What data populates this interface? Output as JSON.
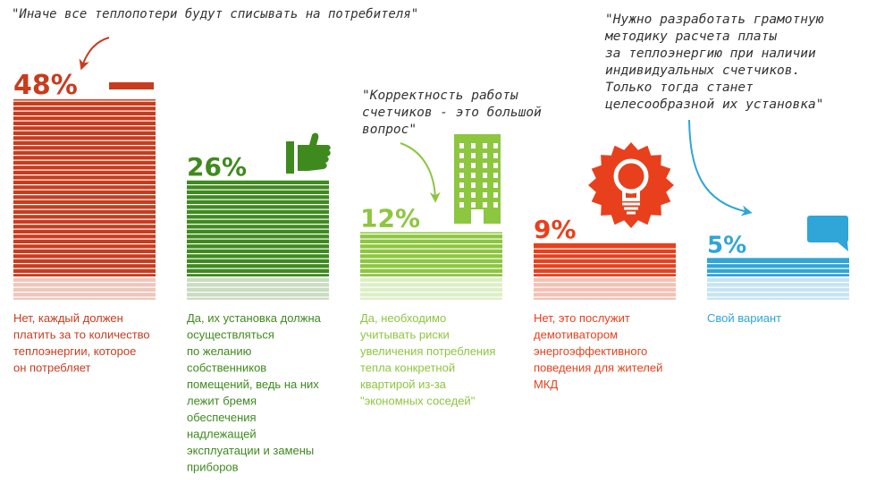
{
  "chart_data": {
    "type": "bar",
    "unit": "%",
    "categories": [
      "Нет, каждый должен платить за то количество теплоэнергии, которое он потребляет",
      "Да, их установка должна осуществляться по желанию собственников помещений, ведь на них лежит бремя обеспечения надлежащей эксплуатации и замены приборов",
      "Да, необходимо учитывать риски увеличения потребления тепла конкретной квартирой из-за \"экономных соседей\"",
      "Нет, это послужит демотиватором энергоэффективного поведения для жителей МКД",
      "Свой вариант"
    ],
    "values": [
      48,
      26,
      12,
      9,
      5
    ],
    "value_labels": [
      "48%",
      "26%",
      "12%",
      "9%",
      "5%"
    ],
    "colors": [
      "#c83c1e",
      "#3f8a1f",
      "#8dc63f",
      "#e8401c",
      "#2fa5d8"
    ],
    "fade_colors": [
      "#f0c5bb",
      "#c9dcbf",
      "#dcefc6",
      "#f5c0b2",
      "#c6e4f3"
    ],
    "description_lines": [
      [
        "Нет, каждый должен",
        "платить за то количество",
        "теплоэнергии, которое",
        "он потребляет"
      ],
      [
        "Да, их установка должна",
        "осуществляться",
        "по желанию",
        "собственников",
        "помещений, ведь на них",
        "лежит бремя",
        "обеспечения",
        "надлежащей",
        "эксплуатации и замены",
        "приборов"
      ],
      [
        "Да, необходимо",
        "учитывать риски",
        "увеличения потребления",
        "тепла конкретной",
        "квартирой из-за",
        "\"экономных соседей\""
      ],
      [
        "Нет, это послужит",
        "демотиватором",
        "энергоэффективного",
        "поведения для жителей",
        "МКД"
      ],
      [
        "Свой вариант"
      ]
    ],
    "icons": [
      "minus-bar-icon",
      "thumbs-up-icon",
      "building-icon",
      "light-bulb-icon",
      "speech-bubble-icon"
    ]
  },
  "quotes": [
    {
      "lines": [
        "\"Иначе все теплопотери будут списывать на потребителя\""
      ]
    },
    {
      "lines": [
        "\"Корректность работы",
        "счетчиков - это большой",
        "вопрос\""
      ]
    },
    {
      "lines": [
        "\"Нужно разработать грамотную",
        "методику расчета платы",
        "за теплоэнергию при наличии",
        "индивидуальных счетчиков.",
        "Только тогда станет",
        "целесообразной их установка\""
      ]
    }
  ]
}
